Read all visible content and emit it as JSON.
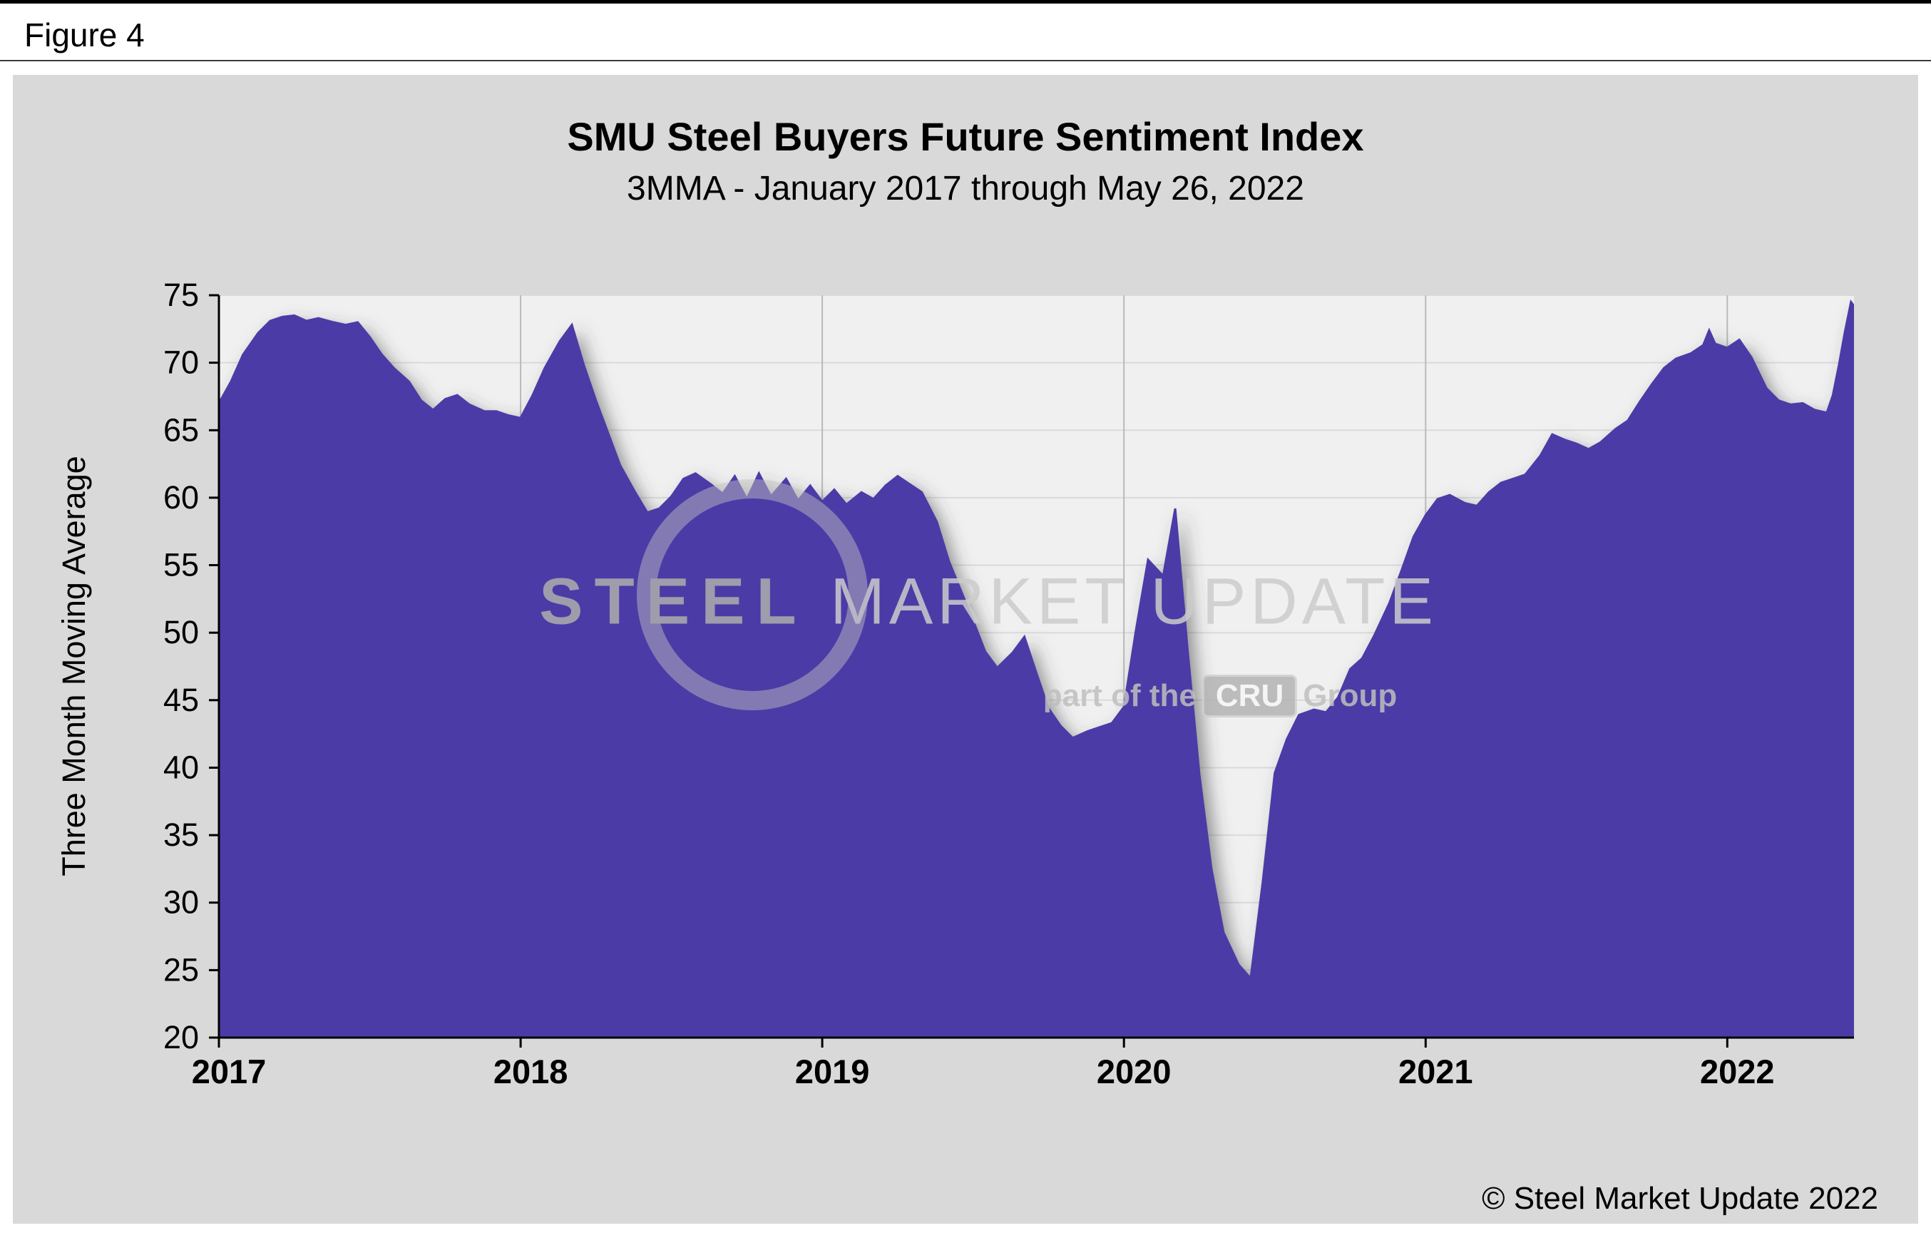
{
  "figure": {
    "label": "Figure 4"
  },
  "watermark": {
    "line1_strong": "STEEL",
    "line1_light": "MARKET UPDATE",
    "line2_pre": "part of the",
    "line2_badge": "CRU",
    "line2_post": "Group"
  },
  "colors": {
    "area": "#4b3ba6",
    "panel_bg": "#d9d9d9",
    "plot_bg": "#f0f0f0",
    "grid_h": "#dadada",
    "grid_v": "#b9b9b9",
    "axis": "#000000"
  },
  "chart_data": {
    "type": "area",
    "title": "SMU Steel Buyers Future Sentiment Index",
    "subtitle": "3MMA - January 2017 through May 26, 2022",
    "ylabel": "Three Month Moving Average",
    "xlabel": "",
    "copyright": "© Steel Market Update 2022",
    "legend": "none",
    "grid": "on",
    "xlim": [
      2017.0,
      2022.42
    ],
    "ylim": [
      20,
      75
    ],
    "xticks": [
      2017,
      2018,
      2019,
      2020,
      2021,
      2022
    ],
    "yticks": [
      20,
      25,
      30,
      35,
      40,
      45,
      50,
      55,
      60,
      65,
      70,
      75
    ],
    "points": [
      [
        2017.0,
        67.0
      ],
      [
        2017.04,
        68.6
      ],
      [
        2017.08,
        70.6
      ],
      [
        2017.13,
        72.2
      ],
      [
        2017.17,
        73.1
      ],
      [
        2017.21,
        73.4
      ],
      [
        2017.25,
        73.5
      ],
      [
        2017.29,
        73.1
      ],
      [
        2017.33,
        73.3
      ],
      [
        2017.38,
        73.0
      ],
      [
        2017.42,
        72.8
      ],
      [
        2017.46,
        73.0
      ],
      [
        2017.5,
        71.9
      ],
      [
        2017.54,
        70.6
      ],
      [
        2017.58,
        69.6
      ],
      [
        2017.63,
        68.6
      ],
      [
        2017.67,
        67.2
      ],
      [
        2017.71,
        66.5
      ],
      [
        2017.75,
        67.3
      ],
      [
        2017.79,
        67.6
      ],
      [
        2017.83,
        66.9
      ],
      [
        2017.88,
        66.4
      ],
      [
        2017.92,
        66.4
      ],
      [
        2017.96,
        66.1
      ],
      [
        2018.0,
        65.9
      ],
      [
        2018.04,
        67.6
      ],
      [
        2018.08,
        69.6
      ],
      [
        2018.13,
        71.6
      ],
      [
        2018.17,
        72.8
      ],
      [
        2018.21,
        69.8
      ],
      [
        2018.25,
        67.2
      ],
      [
        2018.29,
        64.8
      ],
      [
        2018.33,
        62.4
      ],
      [
        2018.38,
        60.4
      ],
      [
        2018.42,
        58.9
      ],
      [
        2018.46,
        59.2
      ],
      [
        2018.5,
        60.1
      ],
      [
        2018.54,
        61.4
      ],
      [
        2018.58,
        61.8
      ],
      [
        2018.63,
        61.0
      ],
      [
        2018.67,
        60.3
      ],
      [
        2018.71,
        61.6
      ],
      [
        2018.75,
        59.9
      ],
      [
        2018.79,
        61.8
      ],
      [
        2018.83,
        60.1
      ],
      [
        2018.88,
        61.4
      ],
      [
        2018.92,
        59.8
      ],
      [
        2018.96,
        60.9
      ],
      [
        2019.0,
        59.7
      ],
      [
        2019.04,
        60.6
      ],
      [
        2019.08,
        59.5
      ],
      [
        2019.13,
        60.4
      ],
      [
        2019.17,
        59.9
      ],
      [
        2019.21,
        60.9
      ],
      [
        2019.25,
        61.6
      ],
      [
        2019.29,
        61.0
      ],
      [
        2019.33,
        60.4
      ],
      [
        2019.38,
        58.2
      ],
      [
        2019.42,
        55.3
      ],
      [
        2019.46,
        53.1
      ],
      [
        2019.5,
        50.9
      ],
      [
        2019.54,
        48.6
      ],
      [
        2019.58,
        47.4
      ],
      [
        2019.63,
        48.5
      ],
      [
        2019.67,
        49.7
      ],
      [
        2019.71,
        47.0
      ],
      [
        2019.75,
        44.4
      ],
      [
        2019.79,
        43.1
      ],
      [
        2019.83,
        42.2
      ],
      [
        2019.88,
        42.7
      ],
      [
        2019.92,
        43.0
      ],
      [
        2019.96,
        43.3
      ],
      [
        2020.0,
        44.5
      ],
      [
        2020.04,
        50.2
      ],
      [
        2020.08,
        55.4
      ],
      [
        2020.13,
        54.2
      ],
      [
        2020.17,
        59.2
      ],
      [
        2020.21,
        49.0
      ],
      [
        2020.25,
        39.5
      ],
      [
        2020.29,
        32.5
      ],
      [
        2020.33,
        27.8
      ],
      [
        2020.38,
        25.4
      ],
      [
        2020.42,
        24.4
      ],
      [
        2020.46,
        31.5
      ],
      [
        2020.5,
        39.6
      ],
      [
        2020.54,
        42.1
      ],
      [
        2020.58,
        43.9
      ],
      [
        2020.63,
        44.3
      ],
      [
        2020.67,
        44.1
      ],
      [
        2020.71,
        45.2
      ],
      [
        2020.75,
        47.3
      ],
      [
        2020.79,
        48.1
      ],
      [
        2020.83,
        49.8
      ],
      [
        2020.88,
        52.2
      ],
      [
        2020.92,
        54.6
      ],
      [
        2020.96,
        57.1
      ],
      [
        2021.0,
        58.7
      ],
      [
        2021.04,
        59.9
      ],
      [
        2021.08,
        60.2
      ],
      [
        2021.13,
        59.6
      ],
      [
        2021.17,
        59.4
      ],
      [
        2021.21,
        60.4
      ],
      [
        2021.25,
        61.1
      ],
      [
        2021.29,
        61.4
      ],
      [
        2021.33,
        61.7
      ],
      [
        2021.38,
        63.1
      ],
      [
        2021.42,
        64.7
      ],
      [
        2021.46,
        64.3
      ],
      [
        2021.5,
        64.0
      ],
      [
        2021.54,
        63.6
      ],
      [
        2021.58,
        64.1
      ],
      [
        2021.63,
        65.1
      ],
      [
        2021.67,
        65.7
      ],
      [
        2021.71,
        67.1
      ],
      [
        2021.75,
        68.4
      ],
      [
        2021.79,
        69.6
      ],
      [
        2021.83,
        70.3
      ],
      [
        2021.88,
        70.7
      ],
      [
        2021.92,
        71.3
      ],
      [
        2021.94,
        72.4
      ],
      [
        2021.96,
        71.4
      ],
      [
        2022.0,
        71.1
      ],
      [
        2022.04,
        71.7
      ],
      [
        2022.08,
        70.4
      ],
      [
        2022.13,
        68.1
      ],
      [
        2022.17,
        67.2
      ],
      [
        2022.21,
        66.9
      ],
      [
        2022.25,
        67.0
      ],
      [
        2022.29,
        66.5
      ],
      [
        2022.33,
        66.3
      ],
      [
        2022.35,
        67.6
      ],
      [
        2022.37,
        69.8
      ],
      [
        2022.39,
        72.3
      ],
      [
        2022.41,
        74.5
      ],
      [
        2022.42,
        74.2
      ]
    ]
  }
}
